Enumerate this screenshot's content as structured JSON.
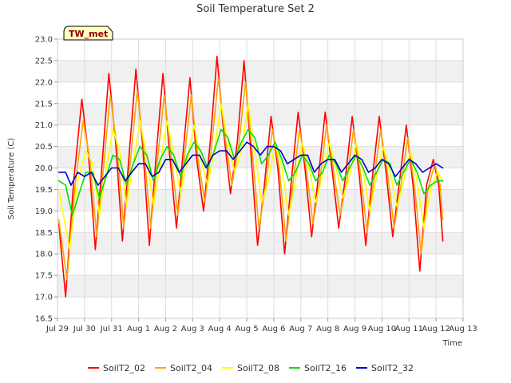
{
  "chart_data": {
    "type": "line",
    "title": "Soil Temperature Set 2",
    "xlabel": "Time",
    "ylabel": "Soil Temperature (C)",
    "site_label": "TW_met",
    "ylim": [
      16.5,
      23.0
    ],
    "yticks": [
      "16.5",
      "17.0",
      "17.5",
      "18.0",
      "18.5",
      "19.0",
      "19.5",
      "20.0",
      "20.5",
      "21.0",
      "21.5",
      "22.0",
      "22.5",
      "23.0"
    ],
    "xlim": [
      0,
      15
    ],
    "xticks": [
      {
        "x": 0,
        "label": "Jul 29"
      },
      {
        "x": 1,
        "label": "Jul 30"
      },
      {
        "x": 2,
        "label": "Jul 31"
      },
      {
        "x": 3,
        "label": "Aug 1"
      },
      {
        "x": 4,
        "label": "Aug 2"
      },
      {
        "x": 5,
        "label": "Aug 3"
      },
      {
        "x": 6,
        "label": "Aug 4"
      },
      {
        "x": 7,
        "label": "Aug 5"
      },
      {
        "x": 8,
        "label": "Aug 6"
      },
      {
        "x": 9,
        "label": "Aug 7"
      },
      {
        "x": 10,
        "label": "Aug 8"
      },
      {
        "x": 11,
        "label": "Aug 9"
      },
      {
        "x": 12,
        "label": "Aug 10"
      },
      {
        "x": 13,
        "label": "Aug 11"
      },
      {
        "x": 14,
        "label": "Aug 12"
      },
      {
        "x": 15,
        "label": "Aug 13"
      }
    ],
    "grid": true,
    "legend_position": "bottom",
    "series": [
      {
        "name": "SoilT2_02",
        "color": "#ff0000",
        "x": [
          0.05,
          0.3,
          0.6,
          0.9,
          1.15,
          1.4,
          1.65,
          1.9,
          2.15,
          2.4,
          2.65,
          2.9,
          3.15,
          3.4,
          3.65,
          3.9,
          4.15,
          4.4,
          4.65,
          4.9,
          5.15,
          5.4,
          5.65,
          5.9,
          6.15,
          6.4,
          6.65,
          6.9,
          7.15,
          7.4,
          7.65,
          7.9,
          8.15,
          8.4,
          8.65,
          8.9,
          9.15,
          9.4,
          9.65,
          9.9,
          10.15,
          10.4,
          10.65,
          10.9,
          11.15,
          11.4,
          11.65,
          11.9,
          12.15,
          12.4,
          12.65,
          12.9,
          13.15,
          13.4,
          13.65,
          13.9,
          14.1,
          14.25
        ],
        "y": [
          18.7,
          17.0,
          19.7,
          21.6,
          20.3,
          18.1,
          20.1,
          22.2,
          20.6,
          18.3,
          20.3,
          22.3,
          20.5,
          18.2,
          20.3,
          22.2,
          20.3,
          18.6,
          20.4,
          22.1,
          20.2,
          19.0,
          20.6,
          22.6,
          20.8,
          19.4,
          20.6,
          22.5,
          20.4,
          18.2,
          19.6,
          21.2,
          20.0,
          18.0,
          19.7,
          21.3,
          20.0,
          18.4,
          19.8,
          21.3,
          20.0,
          18.6,
          19.8,
          21.2,
          19.9,
          18.2,
          19.8,
          21.2,
          19.9,
          18.4,
          19.7,
          21.0,
          19.6,
          17.6,
          19.6,
          20.2,
          19.6,
          18.3
        ]
      },
      {
        "name": "SoilT2_04",
        "color": "#ffa500",
        "x": [
          0.05,
          0.35,
          0.65,
          0.95,
          1.2,
          1.45,
          1.7,
          1.95,
          2.2,
          2.45,
          2.7,
          2.95,
          3.2,
          3.45,
          3.7,
          3.95,
          4.2,
          4.45,
          4.7,
          4.95,
          5.2,
          5.45,
          5.7,
          5.95,
          6.2,
          6.45,
          6.7,
          6.95,
          7.2,
          7.45,
          7.7,
          7.95,
          8.2,
          8.45,
          8.7,
          8.95,
          9.2,
          9.45,
          9.7,
          9.95,
          10.2,
          10.45,
          10.7,
          10.95,
          11.2,
          11.45,
          11.7,
          11.95,
          12.2,
          12.45,
          12.7,
          12.95,
          13.2,
          13.45,
          13.7,
          13.95,
          14.15,
          14.25
        ],
        "y": [
          18.8,
          17.4,
          19.6,
          21.1,
          20.2,
          18.4,
          20.0,
          21.7,
          20.5,
          18.6,
          20.2,
          21.8,
          20.4,
          18.6,
          20.2,
          21.7,
          20.3,
          18.9,
          20.3,
          21.7,
          20.2,
          19.2,
          20.5,
          22.1,
          20.7,
          19.6,
          20.5,
          22.0,
          20.4,
          18.6,
          19.6,
          20.9,
          20.0,
          18.3,
          19.6,
          20.9,
          20.0,
          18.7,
          19.7,
          21.0,
          20.0,
          18.9,
          19.7,
          20.9,
          19.9,
          18.5,
          19.7,
          20.9,
          19.9,
          18.6,
          19.6,
          20.7,
          19.6,
          18.0,
          19.5,
          20.1,
          19.6,
          18.8
        ]
      },
      {
        "name": "SoilT2_08",
        "color": "#ffff00",
        "x": [
          0.05,
          0.45,
          0.75,
          1.05,
          1.3,
          1.55,
          1.8,
          2.05,
          2.3,
          2.55,
          2.8,
          3.05,
          3.3,
          3.55,
          3.8,
          4.05,
          4.3,
          4.55,
          4.8,
          5.05,
          5.3,
          5.55,
          5.8,
          6.05,
          6.3,
          6.55,
          6.8,
          7.05,
          7.3,
          7.55,
          7.8,
          8.05,
          8.3,
          8.55,
          8.8,
          9.05,
          9.3,
          9.55,
          9.8,
          10.05,
          10.3,
          10.55,
          10.8,
          11.05,
          11.3,
          11.55,
          11.8,
          12.05,
          12.3,
          12.55,
          12.8,
          13.05,
          13.3,
          13.55,
          13.8,
          14.05,
          14.25
        ],
        "y": [
          19.5,
          18.1,
          19.7,
          20.4,
          20.1,
          18.9,
          20.0,
          20.9,
          20.4,
          19.1,
          20.1,
          21.1,
          20.3,
          19.1,
          20.1,
          21.1,
          20.3,
          19.4,
          20.2,
          21.0,
          20.2,
          19.6,
          20.4,
          21.5,
          20.6,
          19.9,
          20.4,
          21.5,
          20.4,
          19.2,
          19.7,
          20.6,
          20.0,
          18.9,
          19.7,
          20.6,
          20.0,
          19.2,
          19.8,
          20.6,
          20.0,
          19.3,
          19.8,
          20.6,
          19.9,
          19.0,
          19.8,
          20.5,
          19.9,
          19.1,
          19.7,
          20.4,
          19.7,
          18.6,
          19.5,
          19.9,
          19.7
        ]
      },
      {
        "name": "SoilT2_16",
        "color": "#00e000",
        "x": [
          0.05,
          0.3,
          0.55,
          0.8,
          1.05,
          1.3,
          1.55,
          1.8,
          2.05,
          2.3,
          2.55,
          2.8,
          3.05,
          3.3,
          3.55,
          3.8,
          4.05,
          4.3,
          4.55,
          4.8,
          5.05,
          5.3,
          5.55,
          5.8,
          6.05,
          6.3,
          6.55,
          6.8,
          7.05,
          7.3,
          7.55,
          7.8,
          8.05,
          8.3,
          8.55,
          8.8,
          9.05,
          9.3,
          9.55,
          9.8,
          10.05,
          10.3,
          10.55,
          10.8,
          11.05,
          11.3,
          11.55,
          11.8,
          12.05,
          12.3,
          12.55,
          12.8,
          13.05,
          13.3,
          13.55,
          13.8,
          14.05,
          14.25
        ],
        "y": [
          19.7,
          19.6,
          18.9,
          19.4,
          19.9,
          19.9,
          19.3,
          19.8,
          20.3,
          20.2,
          19.6,
          20.1,
          20.5,
          20.3,
          19.7,
          20.2,
          20.5,
          20.3,
          19.8,
          20.3,
          20.6,
          20.4,
          20.0,
          20.4,
          20.9,
          20.7,
          20.2,
          20.6,
          20.9,
          20.7,
          20.1,
          20.3,
          20.6,
          20.2,
          19.7,
          19.9,
          20.3,
          20.1,
          19.7,
          19.9,
          20.3,
          20.1,
          19.7,
          20.0,
          20.3,
          20.0,
          19.6,
          19.9,
          20.2,
          20.1,
          19.6,
          19.9,
          20.2,
          19.9,
          19.4,
          19.6,
          19.7,
          19.7
        ]
      },
      {
        "name": "SoilT2_32",
        "color": "#0000cc",
        "x": [
          0.05,
          0.3,
          0.5,
          0.75,
          1.0,
          1.25,
          1.5,
          1.75,
          2.0,
          2.25,
          2.5,
          2.75,
          3.0,
          3.25,
          3.5,
          3.75,
          4.0,
          4.25,
          4.5,
          4.75,
          5.0,
          5.25,
          5.5,
          5.75,
          6.0,
          6.25,
          6.5,
          6.75,
          7.0,
          7.25,
          7.5,
          7.75,
          8.0,
          8.25,
          8.5,
          8.75,
          9.0,
          9.25,
          9.5,
          9.75,
          10.0,
          10.25,
          10.5,
          10.75,
          11.0,
          11.25,
          11.5,
          11.75,
          12.0,
          12.25,
          12.5,
          12.75,
          13.0,
          13.25,
          13.5,
          13.75,
          14.0,
          14.25
        ],
        "y": [
          19.9,
          19.9,
          19.6,
          19.9,
          19.8,
          19.9,
          19.6,
          19.8,
          20.0,
          20.0,
          19.7,
          19.9,
          20.1,
          20.1,
          19.8,
          19.9,
          20.2,
          20.2,
          19.9,
          20.1,
          20.3,
          20.3,
          20.0,
          20.3,
          20.4,
          20.4,
          20.2,
          20.4,
          20.6,
          20.5,
          20.3,
          20.5,
          20.5,
          20.4,
          20.1,
          20.2,
          20.3,
          20.3,
          19.9,
          20.1,
          20.2,
          20.2,
          19.9,
          20.1,
          20.3,
          20.2,
          19.9,
          20.0,
          20.2,
          20.1,
          19.8,
          20.0,
          20.2,
          20.1,
          19.9,
          20.0,
          20.1,
          20.0
        ]
      }
    ]
  }
}
